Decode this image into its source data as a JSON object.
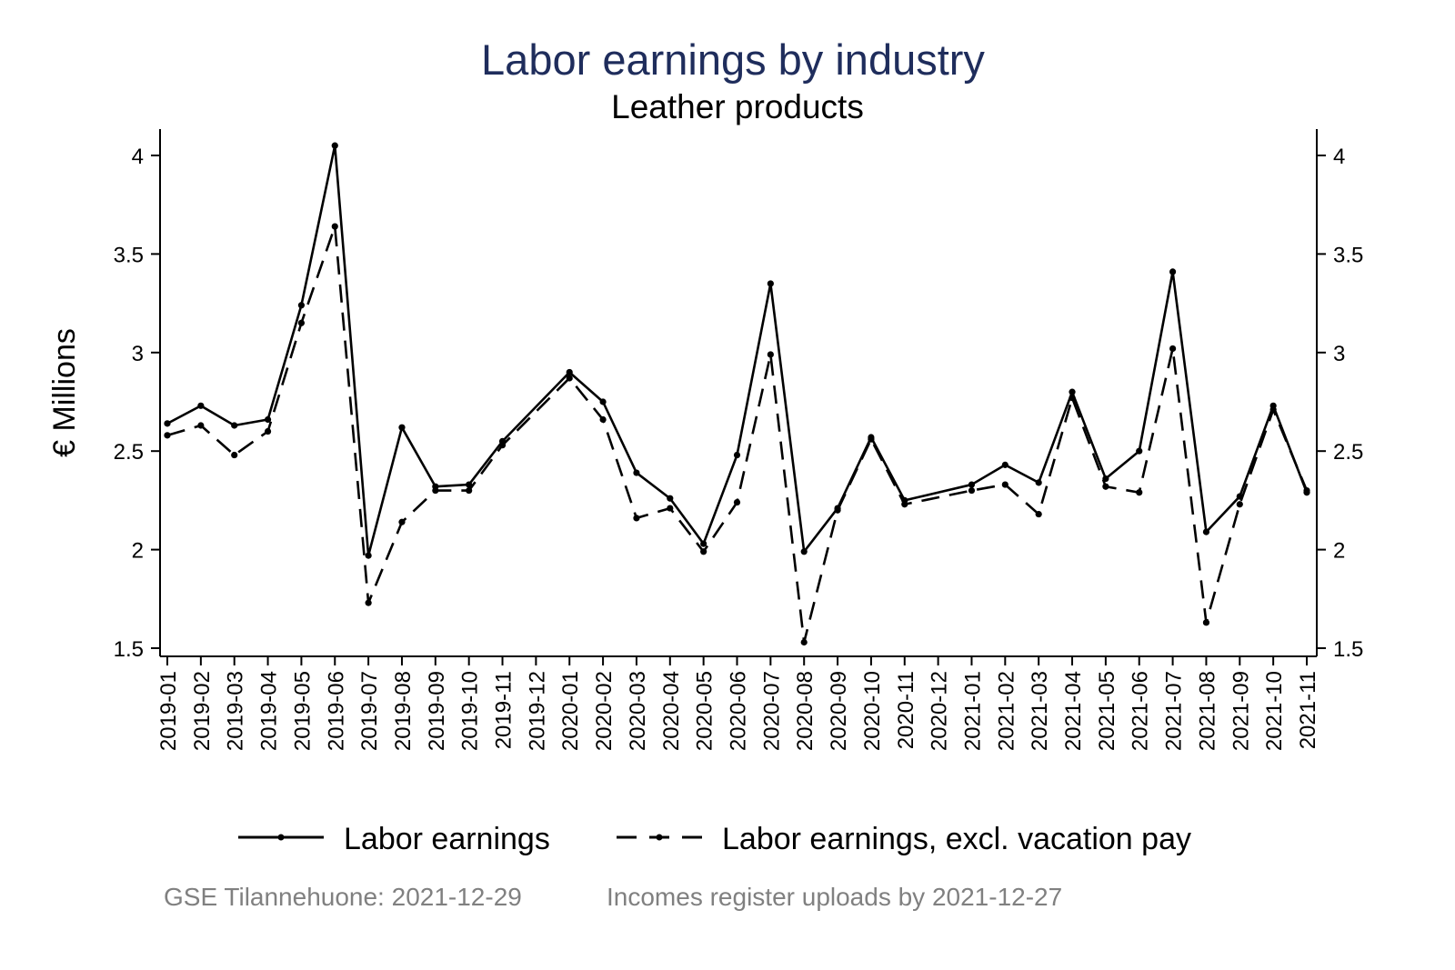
{
  "chart_data": {
    "type": "line",
    "title": "Labor earnings by industry",
    "subtitle": "Leather products",
    "ylabel": "€ Millions",
    "xlabel": "",
    "ylim": [
      1.5,
      4.1
    ],
    "yticks": [
      1.5,
      2,
      2.5,
      3,
      3.5,
      4
    ],
    "ytick_labels": [
      "1.5",
      "2",
      "2.5",
      "3",
      "3.5",
      "4"
    ],
    "dual_y_axis": true,
    "grid": false,
    "legend_position": "bottom",
    "x": [
      "2019-01",
      "2019-02",
      "2019-03",
      "2019-04",
      "2019-05",
      "2019-06",
      "2019-07",
      "2019-08",
      "2019-09",
      "2019-10",
      "2019-11",
      "2019-12",
      "2020-01",
      "2020-02",
      "2020-03",
      "2020-04",
      "2020-05",
      "2020-06",
      "2020-07",
      "2020-08",
      "2020-09",
      "2020-10",
      "2020-11",
      "2020-12",
      "2021-01",
      "2021-02",
      "2021-03",
      "2021-04",
      "2021-05",
      "2021-06",
      "2021-07",
      "2021-08",
      "2021-09",
      "2021-10",
      "2021-11"
    ],
    "series": [
      {
        "name": "Labor earnings",
        "style": "solid",
        "color": "#000000",
        "values": [
          2.64,
          2.73,
          2.63,
          2.66,
          3.24,
          4.05,
          1.97,
          2.62,
          2.32,
          2.33,
          2.55,
          null,
          2.9,
          2.75,
          2.39,
          2.26,
          2.03,
          2.48,
          3.35,
          1.99,
          2.21,
          2.57,
          2.25,
          null,
          2.33,
          2.43,
          2.34,
          2.8,
          2.36,
          2.5,
          3.41,
          2.09,
          2.27,
          2.73,
          2.29
        ]
      },
      {
        "name": "Labor earnings, excl. vacation pay",
        "style": "dashed",
        "color": "#000000",
        "values": [
          2.58,
          2.63,
          2.48,
          2.6,
          3.15,
          3.64,
          1.73,
          2.14,
          2.3,
          2.3,
          2.53,
          null,
          2.87,
          2.66,
          2.16,
          2.21,
          1.99,
          2.24,
          2.99,
          1.53,
          2.2,
          2.56,
          2.23,
          null,
          2.3,
          2.33,
          2.18,
          2.77,
          2.32,
          2.29,
          3.02,
          1.63,
          2.23,
          2.71,
          2.3
        ]
      }
    ],
    "notes": [
      "GSE Tilannehuone: 2021-12-29",
      "Incomes register uploads by 2021-12-27"
    ]
  }
}
